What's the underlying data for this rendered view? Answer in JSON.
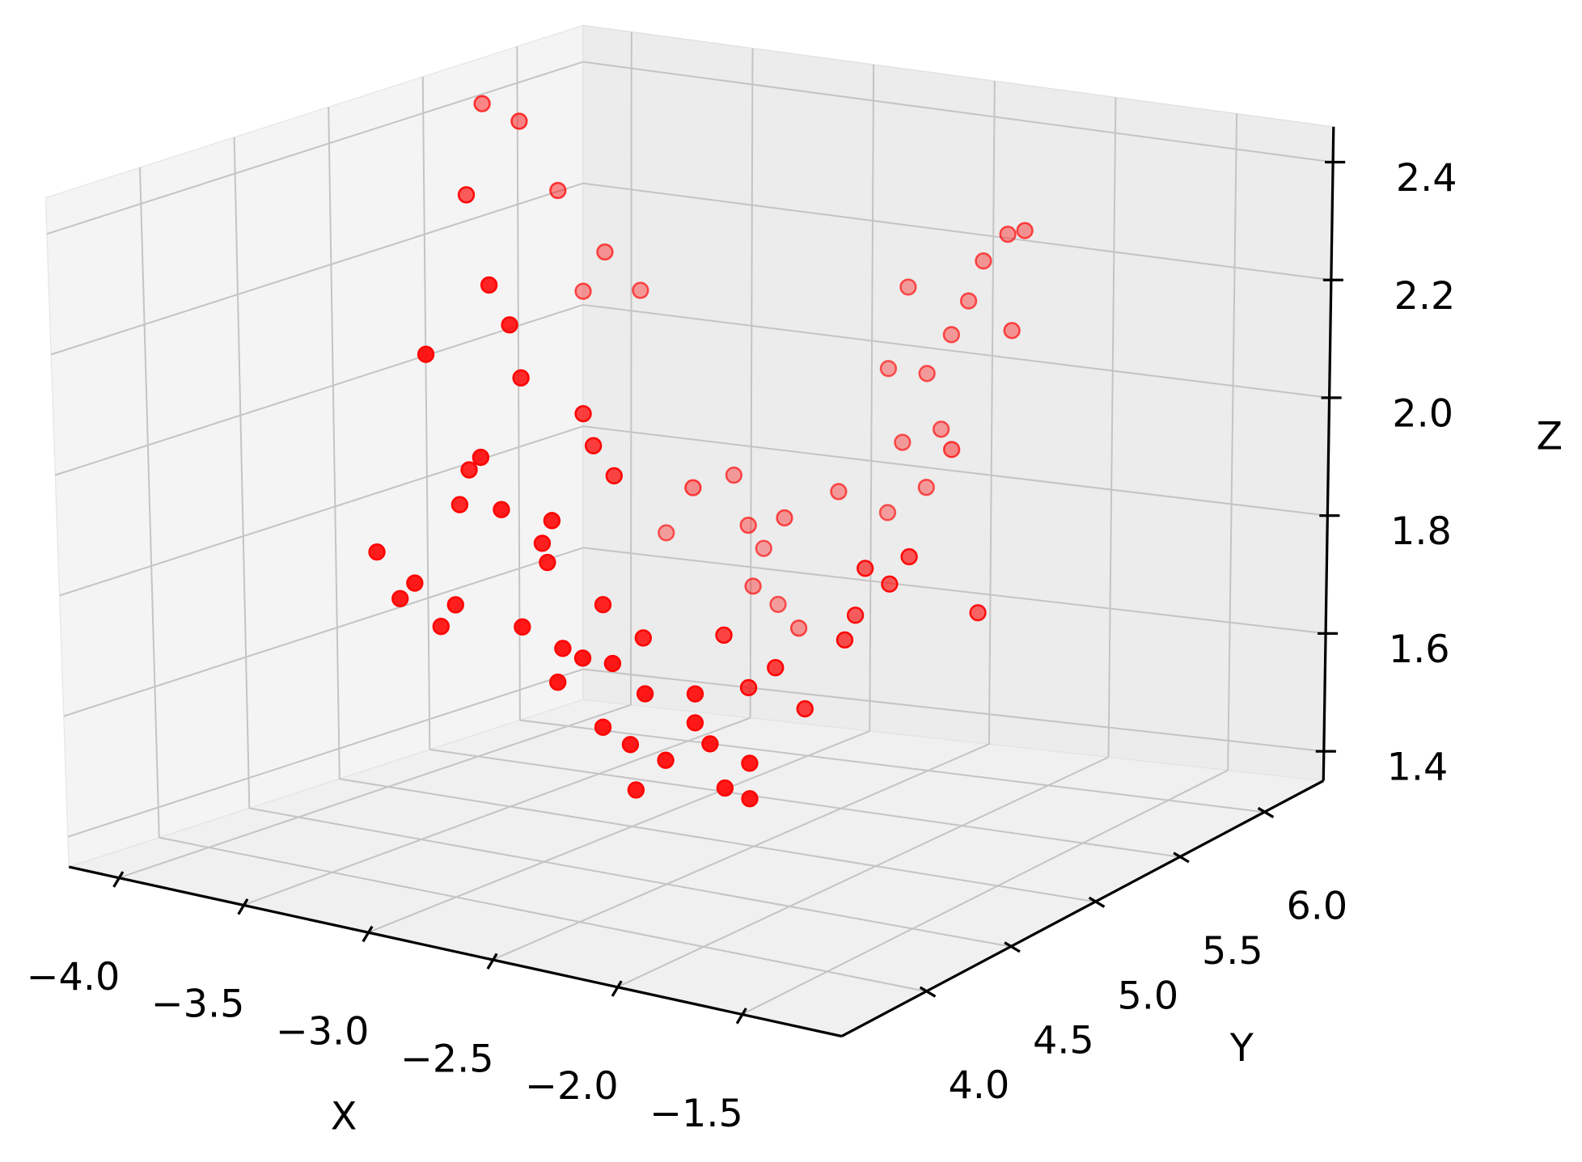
{
  "chart_data": {
    "type": "scatter3d",
    "xlabel": "X",
    "ylabel": "Y",
    "zlabel": "Z",
    "color": "#ff0000",
    "grid": true,
    "xlim": [
      -4.2,
      -1.1
    ],
    "ylim": [
      3.5,
      6.35
    ],
    "zlim": [
      1.35,
      2.46
    ],
    "xticks": [
      {
        "value": -4,
        "label": "−4.0"
      },
      {
        "value": -3.5,
        "label": "−3.5"
      },
      {
        "value": -3,
        "label": "−3.0"
      },
      {
        "value": -2.5,
        "label": "−2.5"
      },
      {
        "value": -2,
        "label": "−2.0"
      },
      {
        "value": -1.5,
        "label": "−1.5"
      }
    ],
    "yticks": [
      {
        "value": 4,
        "label": "4.0"
      },
      4.5,
      {
        "value": 5,
        "label": "5.0"
      },
      5.5,
      {
        "value": 6,
        "label": "6.0"
      }
    ],
    "zticks": [
      1.4,
      1.6,
      1.8,
      {
        "value": 2,
        "label": "2.0"
      },
      2.2,
      2.4
    ],
    "x": [
      -3.44,
      -3.35,
      -3.26,
      -3.25,
      -3.21,
      -3.23,
      -3.65,
      -3.96,
      -3.81,
      -3.73,
      -3.12,
      -3.04,
      -3.07,
      -3.09,
      -3.01,
      -2.92,
      -2.88,
      -2.86,
      -2.77,
      -2.72,
      -2.69,
      -2.75,
      -2.57,
      -2.54,
      -2.43,
      -2.48,
      -2.43,
      -2.31,
      -2.25,
      -2.12,
      -2.02,
      -2.09,
      -2.66,
      -2.38,
      -3.04,
      -3.0,
      -2.99,
      -3.78,
      -3.69,
      -3.62,
      -3.59,
      -3.33,
      -3.31,
      -3.25,
      -3.26,
      -3.23,
      -3.2,
      -3.1,
      -2.95,
      -3.04,
      -2.33,
      -2.23,
      -2.15,
      -2.37,
      -2.01,
      -2.27,
      -2.29,
      -2.41,
      -2.52,
      -2.62,
      -2.82,
      -2.66,
      -2.76,
      -2.6,
      -2.66,
      -2.56,
      -2.49,
      -2.43,
      -2.33,
      -2.26,
      -2.74,
      -2.82,
      -2.31,
      -2.41,
      -3.29,
      -3.2,
      -2.9,
      -2.44
    ],
    "y": [
      4.2,
      4.2,
      4.3,
      4.4,
      4.4,
      4.2,
      5.0,
      5.5,
      5.5,
      5.6,
      4.4,
      4.4,
      4.5,
      4.3,
      4.3,
      4.4,
      4.4,
      4.2,
      4.3,
      4.2,
      4.3,
      4.5,
      4.3,
      4.2,
      4.2,
      4.3,
      4.4,
      4.4,
      4.4,
      4.3,
      4.3,
      4.4,
      4.6,
      4.5,
      4.8,
      4.8,
      4.9,
      5.8,
      5.8,
      5.9,
      6.0,
      5.8,
      6.0,
      6.0,
      6.1,
      6.0,
      6.1,
      6.0,
      6.1,
      6.0,
      5.4,
      5.4,
      5.4,
      5.4,
      5.6,
      5.2,
      5.0,
      5.0,
      5.0,
      5.0,
      6.2,
      6.2,
      6.2,
      6.2,
      6.2,
      6.2,
      6.2,
      6.2,
      6.2,
      6.2,
      6.2,
      6.2,
      6.2,
      6.0,
      4.2,
      4.3,
      4.4,
      4.3
    ],
    "z": [
      1.86,
      1.79,
      1.74,
      1.93,
      1.99,
      2.2,
      2.35,
      2.43,
      2.41,
      2.29,
      2.3,
      2.24,
      2.14,
      2.03,
      1.95,
      1.89,
      1.93,
      1.78,
      1.74,
      1.7,
      1.73,
      1.79,
      1.73,
      1.64,
      1.62,
      1.53,
      1.57,
      1.64,
      1.61,
      1.56,
      1.55,
      1.59,
      1.73,
      1.67,
      2.05,
      2.0,
      1.94,
      2.1,
      2.17,
      2.1,
      1.69,
      1.8,
      1.8,
      1.72,
      1.67,
      1.62,
      1.58,
      1.74,
      1.78,
      1.56,
      1.77,
      1.75,
      1.8,
      1.69,
      1.69,
      1.68,
      1.59,
      1.65,
      1.61,
      1.69,
      1.74,
      1.79,
      1.86,
      1.89,
      1.98,
      2.05,
      2.11,
      2.18,
      2.23,
      2.24,
      2.12,
      1.98,
      2.07,
      1.89,
      1.82,
      1.78,
      1.86,
      1.69
    ]
  }
}
